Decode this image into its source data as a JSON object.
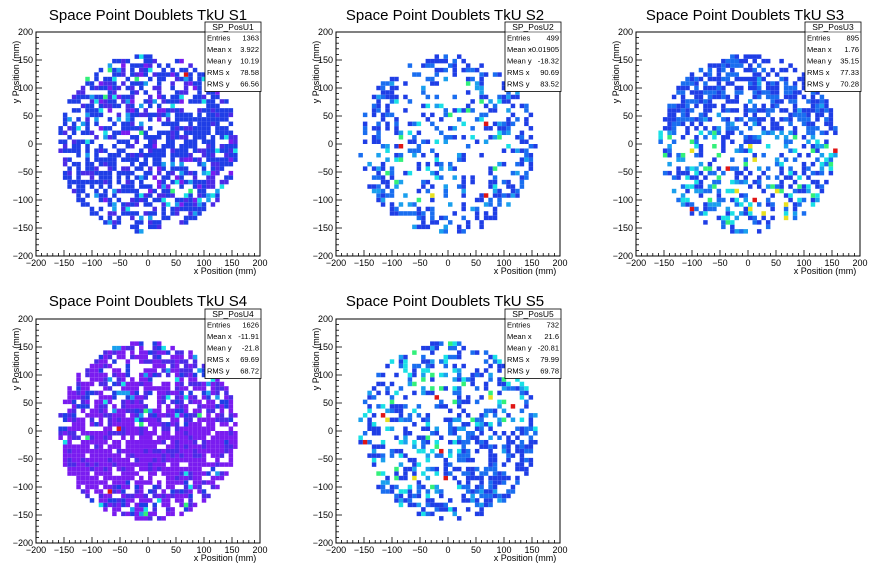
{
  "chart_data": [
    {
      "type": "heatmap",
      "title": "Space Point Doublets TkU S1",
      "xlabel": "x Position (mm)",
      "ylabel": "y Position (mm)",
      "xlim": [
        -200,
        200
      ],
      "ylim": [
        -200,
        200
      ],
      "xticks": [
        "−200",
        "−150",
        "−100",
        "−50",
        "0",
        "50",
        "100",
        "150",
        "200"
      ],
      "yticks": [
        "−200",
        "−150",
        "−100",
        "−50",
        "0",
        "50",
        "100",
        "150",
        "200"
      ],
      "stats": {
        "name": "SP_PosU1",
        "rows": [
          {
            "label": "Entries",
            "value": "1363"
          },
          {
            "label": "Mean x",
            "value": "3.922"
          },
          {
            "label": "Mean y",
            "value": "10.19"
          },
          {
            "label": "RMS x",
            "value": "78.58"
          },
          {
            "label": "RMS y",
            "value": "66.56"
          }
        ]
      },
      "palette": "purple-blue",
      "fill_fraction": 0.58,
      "band": "diagonal"
    },
    {
      "type": "heatmap",
      "title": "Space Point Doublets TkU S2",
      "xlabel": "x Position (mm)",
      "ylabel": "y Position (mm)",
      "xlim": [
        -200,
        200
      ],
      "ylim": [
        -200,
        200
      ],
      "xticks": [
        "−200",
        "−150",
        "−100",
        "−50",
        "0",
        "50",
        "100",
        "150",
        "200"
      ],
      "yticks": [
        "−200",
        "−150",
        "−100",
        "−50",
        "0",
        "50",
        "100",
        "150",
        "200"
      ],
      "stats": {
        "name": "SP_PosU2",
        "rows": [
          {
            "label": "Entries",
            "value": "499"
          },
          {
            "label": "Mean x",
            "value": "-0.01905"
          },
          {
            "label": "Mean y",
            "value": "-18.32"
          },
          {
            "label": "RMS x",
            "value": "90.69"
          },
          {
            "label": "RMS y",
            "value": "83.52"
          }
        ]
      },
      "palette": "blue-cyan",
      "fill_fraction": 0.26,
      "band": "ring"
    },
    {
      "type": "heatmap",
      "title": "Space Point Doublets TkU S3",
      "xlabel": "x Position (mm)",
      "ylabel": "y Position (mm)",
      "xlim": [
        -200,
        200
      ],
      "ylim": [
        -200,
        200
      ],
      "xticks": [
        "−200",
        "−150",
        "−100",
        "−50",
        "0",
        "50",
        "100",
        "150",
        "200"
      ],
      "yticks": [
        "−200",
        "−150",
        "−100",
        "−50",
        "0",
        "50",
        "100",
        "150",
        "200"
      ],
      "stats": {
        "name": "SP_PosU3",
        "rows": [
          {
            "label": "Entries",
            "value": "895"
          },
          {
            "label": "Mean x",
            "value": "1.76"
          },
          {
            "label": "Mean y",
            "value": "35.15"
          },
          {
            "label": "RMS x",
            "value": "77.33"
          },
          {
            "label": "RMS y",
            "value": "70.28"
          }
        ]
      },
      "palette": "blue-cyan",
      "fill_fraction": 0.45,
      "band": "upper"
    },
    {
      "type": "heatmap",
      "title": "Space Point Doublets TkU S4",
      "xlabel": "x Position (mm)",
      "ylabel": "y Position (mm)",
      "xlim": [
        -200,
        200
      ],
      "ylim": [
        -200,
        200
      ],
      "xticks": [
        "−200",
        "−150",
        "−100",
        "−50",
        "0",
        "50",
        "100",
        "150",
        "200"
      ],
      "yticks": [
        "−200",
        "−150",
        "−100",
        "−50",
        "0",
        "50",
        "100",
        "150",
        "200"
      ],
      "stats": {
        "name": "SP_PosU4",
        "rows": [
          {
            "label": "Entries",
            "value": "1626"
          },
          {
            "label": "Mean x",
            "value": "-11.91"
          },
          {
            "label": "Mean y",
            "value": "-21.8"
          },
          {
            "label": "RMS x",
            "value": "69.69"
          },
          {
            "label": "RMS y",
            "value": "68.72"
          }
        ]
      },
      "palette": "purple",
      "fill_fraction": 0.72,
      "band": "lower"
    },
    {
      "type": "heatmap",
      "title": "Space Point Doublets TkU S5",
      "xlabel": "x Position (mm)",
      "ylabel": "y Position (mm)",
      "xlim": [
        -200,
        200
      ],
      "ylim": [
        -200,
        200
      ],
      "xticks": [
        "−200",
        "−150",
        "−100",
        "−50",
        "0",
        "50",
        "100",
        "150",
        "200"
      ],
      "yticks": [
        "−200",
        "−150",
        "−100",
        "−50",
        "0",
        "50",
        "100",
        "150",
        "200"
      ],
      "stats": {
        "name": "SP_PosU5",
        "rows": [
          {
            "label": "Entries",
            "value": "732"
          },
          {
            "label": "Mean x",
            "value": "21.6"
          },
          {
            "label": "Mean y",
            "value": "-20.81"
          },
          {
            "label": "RMS x",
            "value": "79.99"
          },
          {
            "label": "RMS y",
            "value": "69.78"
          }
        ]
      },
      "palette": "blue-cyan",
      "fill_fraction": 0.4,
      "band": "lowerright"
    }
  ],
  "colors": {
    "frame": "#000000",
    "background": "#ffffff",
    "violet": "#7a1cf0",
    "purple_blue": "#4b2be8",
    "blue": "#1f3ee6",
    "mid_blue": "#1a6ef0",
    "sky": "#1aa0ee",
    "cyan": "#19e0e6",
    "green": "#33f07a",
    "yellow": "#e8e020",
    "orange": "#f08a20",
    "red": "#e01515"
  }
}
